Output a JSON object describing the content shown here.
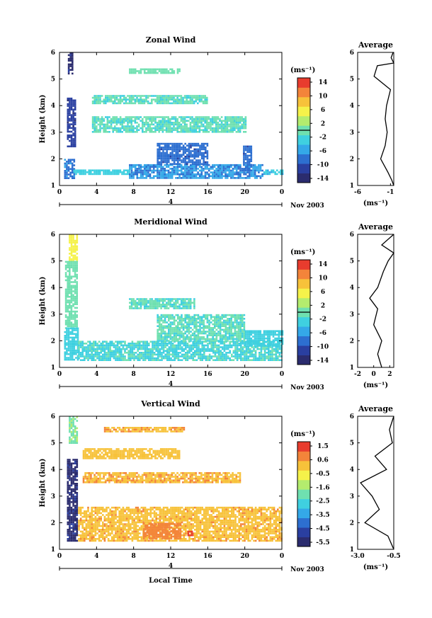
{
  "figure": {
    "xlabel": "Local Time",
    "date_label": "Nov 2003",
    "colorbar_unit": "(ms⁻¹)",
    "avg_xlabel": "(ms⁻¹)",
    "time_ticks": [
      "0",
      "4",
      "8",
      "12",
      "16",
      "20",
      "0"
    ],
    "height_ticks": [
      "1",
      "2",
      "3",
      "4",
      "5",
      "6"
    ],
    "day_label": "4"
  },
  "chart_data": [
    {
      "type": "heatmap",
      "title": "Zonal Wind",
      "ylabel": "Height (km)",
      "xlim": [
        0,
        24
      ],
      "ylim": [
        1,
        6
      ],
      "colorbar": {
        "ticks": [
          "14",
          "10",
          "6",
          "2",
          "-2",
          "-6",
          "-10",
          "-14"
        ],
        "range": [
          -16,
          16
        ],
        "contour_level": 0
      },
      "colors": [
        "#2b2c6e",
        "#2a3fa0",
        "#2d6fd0",
        "#34a8e8",
        "#3fd0e0",
        "#6fe0b0",
        "#b4ec6e",
        "#f5f24a",
        "#f7c23a",
        "#f3843a",
        "#e83c2e"
      ],
      "regions": [
        {
          "x": [
            0.9,
            1.4
          ],
          "y": [
            5.2,
            6.0
          ],
          "value": -14
        },
        {
          "x": [
            0.8,
            1.6
          ],
          "y": [
            2.5,
            4.3
          ],
          "value": -12
        },
        {
          "x": [
            0.5,
            1.5
          ],
          "y": [
            1.3,
            2.0
          ],
          "value": -8
        },
        {
          "x": [
            1.5,
            7.5
          ],
          "y": [
            1.4,
            1.6
          ],
          "value": -3
        },
        {
          "x": [
            7.5,
            22.0
          ],
          "y": [
            1.3,
            1.8
          ],
          "value": -7
        },
        {
          "x": [
            10.5,
            16.0
          ],
          "y": [
            1.8,
            2.6
          ],
          "value": -9
        },
        {
          "x": [
            19.8,
            20.6
          ],
          "y": [
            1.6,
            2.5
          ],
          "value": -9
        },
        {
          "x": [
            22.0,
            24.0
          ],
          "y": [
            1.4,
            1.6
          ],
          "value": -4
        },
        {
          "x": [
            3.5,
            16.0
          ],
          "y": [
            4.1,
            4.4
          ],
          "value": -1
        },
        {
          "x": [
            7.5,
            13.0
          ],
          "y": [
            5.2,
            5.4
          ],
          "value": 0
        },
        {
          "x": [
            3.5,
            20.0
          ],
          "y": [
            3.0,
            3.6
          ],
          "value": -1
        }
      ],
      "average": {
        "xlim": [
          -6,
          -0.5
        ],
        "xticks": [
          "-6",
          "-1"
        ],
        "points": [
          [
            -0.5,
            1.0
          ],
          [
            -0.8,
            1.2
          ],
          [
            -1.4,
            1.5
          ],
          [
            -2.5,
            2.0
          ],
          [
            -1.8,
            2.5
          ],
          [
            -1.5,
            3.0
          ],
          [
            -1.8,
            3.5
          ],
          [
            -1.6,
            4.0
          ],
          [
            -1.0,
            4.6
          ],
          [
            -3.5,
            5.1
          ],
          [
            -3.0,
            5.5
          ],
          [
            -0.5,
            5.6
          ],
          [
            -0.9,
            5.8
          ],
          [
            -0.6,
            6.0
          ]
        ]
      }
    },
    {
      "type": "heatmap",
      "title": "Meridional Wind",
      "ylabel": "Height (km)",
      "xlim": [
        0,
        24
      ],
      "ylim": [
        1,
        6
      ],
      "colorbar": {
        "ticks": [
          "14",
          "10",
          "6",
          "2",
          "-2",
          "-6",
          "-10",
          "-14"
        ],
        "range": [
          -16,
          16
        ],
        "contour_level": 0
      },
      "colors": [
        "#2b2c6e",
        "#2a3fa0",
        "#2d6fd0",
        "#34a8e8",
        "#3fd0e0",
        "#6fe0b0",
        "#b4ec6e",
        "#f5f24a",
        "#f7c23a",
        "#f3843a",
        "#e83c2e"
      ],
      "regions": [
        {
          "x": [
            1.0,
            1.8
          ],
          "y": [
            5.0,
            6.0
          ],
          "value": 6
        },
        {
          "x": [
            0.6,
            1.8
          ],
          "y": [
            2.5,
            5.0
          ],
          "value": 0
        },
        {
          "x": [
            0.5,
            2.0
          ],
          "y": [
            1.3,
            2.5
          ],
          "value": -3
        },
        {
          "x": [
            2.0,
            24.0
          ],
          "y": [
            1.3,
            2.0
          ],
          "value": -2
        },
        {
          "x": [
            10.5,
            20.0
          ],
          "y": [
            2.0,
            3.0
          ],
          "value": -1
        },
        {
          "x": [
            20.0,
            24.0
          ],
          "y": [
            1.8,
            2.4
          ],
          "value": -3
        },
        {
          "x": [
            7.5,
            14.5
          ],
          "y": [
            3.2,
            3.6
          ],
          "value": -1
        }
      ],
      "average": {
        "xlim": [
          -2,
          2.5
        ],
        "xticks": [
          "-2",
          "0",
          "2"
        ],
        "points": [
          [
            1.0,
            1.0
          ],
          [
            0.5,
            1.5
          ],
          [
            1.0,
            2.0
          ],
          [
            0.0,
            2.6
          ],
          [
            0.5,
            3.2
          ],
          [
            -0.5,
            3.6
          ],
          [
            0.5,
            4.0
          ],
          [
            1.2,
            4.6
          ],
          [
            1.8,
            5.0
          ],
          [
            2.5,
            5.3
          ],
          [
            1.0,
            5.6
          ],
          [
            2.5,
            6.0
          ]
        ]
      }
    },
    {
      "type": "heatmap",
      "title": "Vertical Wind",
      "ylabel": "Height (km)",
      "xlim": [
        0,
        24
      ],
      "ylim": [
        1,
        6
      ],
      "colorbar": {
        "ticks": [
          "1.5",
          "0.6",
          "-0.5",
          "-1.6",
          "-2.5",
          "-3.5",
          "-4.5",
          "-5.5"
        ],
        "range": [
          -6,
          2
        ],
        "contour_level": null
      },
      "colors": [
        "#2b2c6e",
        "#2a3fa0",
        "#2d6fd0",
        "#34a8e8",
        "#3fd0e0",
        "#6fe0b0",
        "#b4ec6e",
        "#f5f24a",
        "#f7c23a",
        "#f3843a",
        "#e83c2e"
      ],
      "regions": [
        {
          "x": [
            1.0,
            1.8
          ],
          "y": [
            5.0,
            6.0
          ],
          "value": -1.8
        },
        {
          "x": [
            0.8,
            1.8
          ],
          "y": [
            1.3,
            4.4
          ],
          "value": -5.5
        },
        {
          "x": [
            4.8,
            13.5
          ],
          "y": [
            5.4,
            5.6
          ],
          "value": 0.4
        },
        {
          "x": [
            2.5,
            13.0
          ],
          "y": [
            4.4,
            4.8
          ],
          "value": 0.2
        },
        {
          "x": [
            2.5,
            19.5
          ],
          "y": [
            3.5,
            3.9
          ],
          "value": 0.4
        },
        {
          "x": [
            2.0,
            24.0
          ],
          "y": [
            1.3,
            2.6
          ],
          "value": 0.3
        },
        {
          "x": [
            9.0,
            13.0
          ],
          "y": [
            1.4,
            2.0
          ],
          "value": 0.9
        },
        {
          "x": [
            13.8,
            14.2
          ],
          "y": [
            1.5,
            1.7
          ],
          "value": 1.6
        }
      ],
      "average": {
        "xlim": [
          -3.0,
          -0.5
        ],
        "xticks": [
          "-3.0",
          "-0.5"
        ],
        "points": [
          [
            -0.5,
            1.0
          ],
          [
            -0.9,
            1.5
          ],
          [
            -2.5,
            2.0
          ],
          [
            -1.5,
            2.5
          ],
          [
            -2.0,
            3.0
          ],
          [
            -2.8,
            3.5
          ],
          [
            -1.0,
            4.0
          ],
          [
            -1.8,
            4.5
          ],
          [
            -0.6,
            5.0
          ],
          [
            -0.8,
            5.5
          ],
          [
            -0.5,
            6.0
          ]
        ]
      }
    }
  ]
}
